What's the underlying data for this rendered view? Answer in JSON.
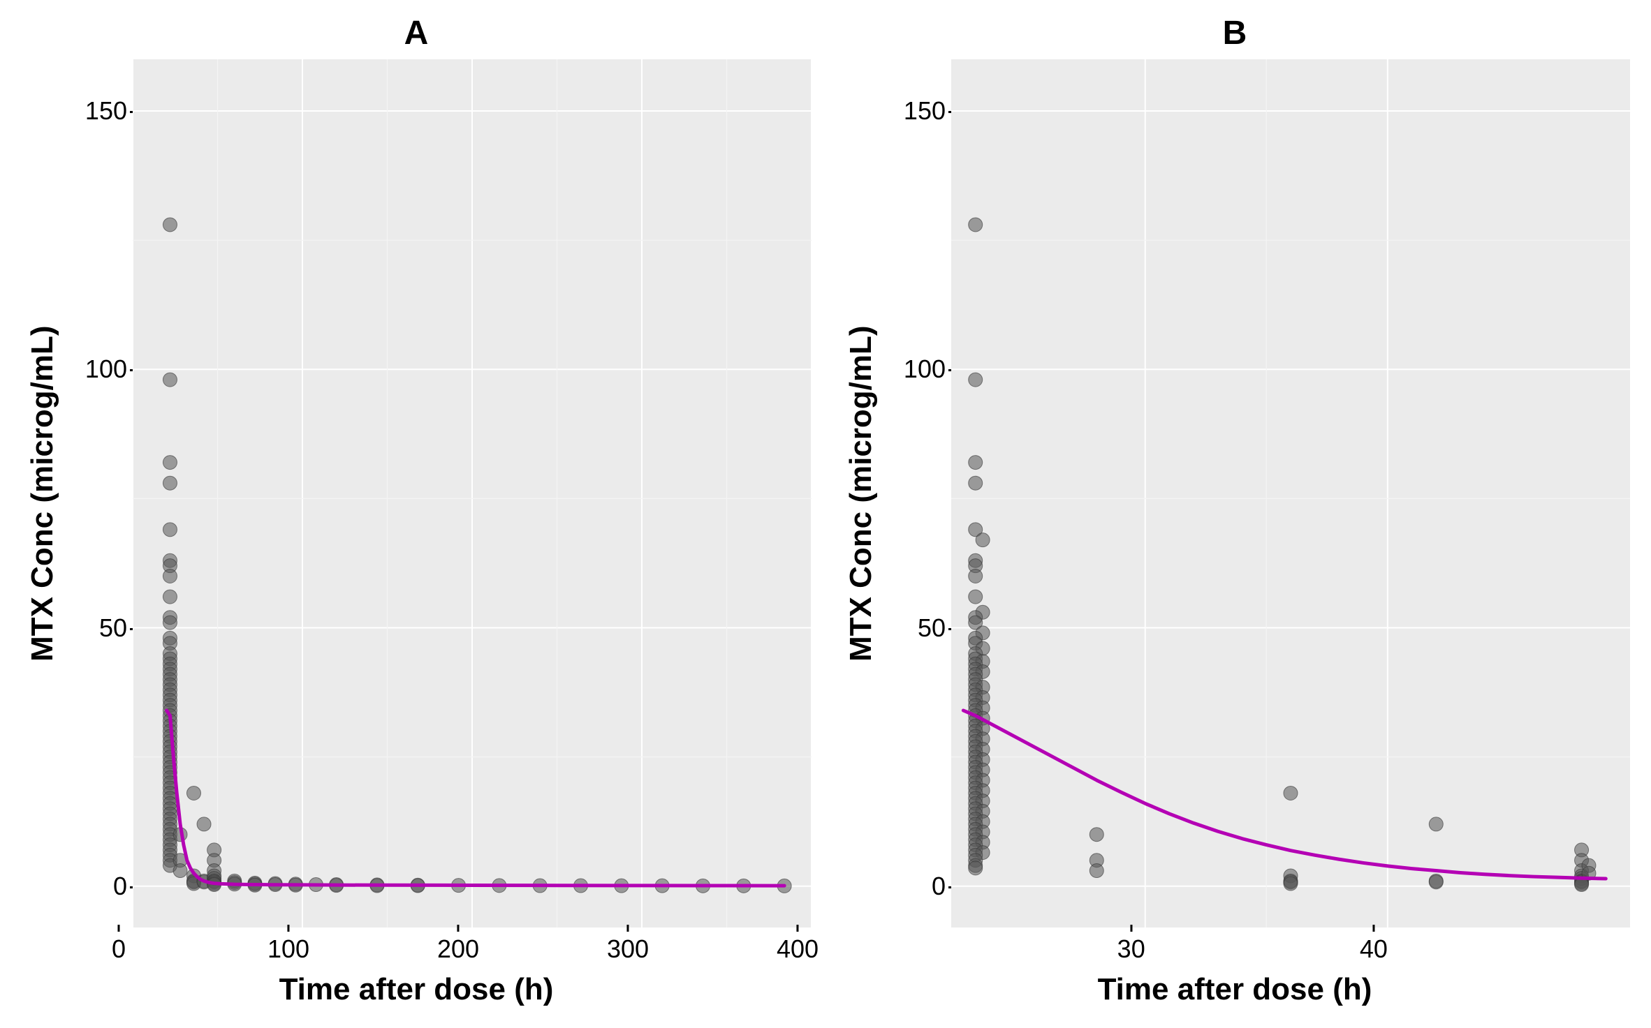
{
  "figure": {
    "background_color": "#ffffff",
    "panel_bg": "#ebebeb",
    "grid_color": "#ffffff",
    "grid_minor_color": "#f4f4f4",
    "point_fill": "#555555",
    "point_stroke": "#333333",
    "point_opacity": 0.55,
    "point_radius": 10,
    "line_color": "#b400b4",
    "line_width": 5,
    "title_fontsize": 48,
    "label_fontsize": 44,
    "tick_fontsize": 36,
    "font_weight_title": 700,
    "font_weight_label": 700
  },
  "panels": {
    "A": {
      "title": "A",
      "xlabel": "Time after dose (h)",
      "ylabel": "MTX Conc (microg/mL)",
      "xlim": [
        0,
        400
      ],
      "ylim": [
        -8,
        160
      ],
      "xticks": [
        0,
        100,
        200,
        300,
        400
      ],
      "yticks": [
        0,
        50,
        100,
        150
      ],
      "type": "scatter+line",
      "points": [
        [
          22,
          128
        ],
        [
          22,
          98
        ],
        [
          22,
          82
        ],
        [
          22,
          78
        ],
        [
          22,
          69
        ],
        [
          22,
          63
        ],
        [
          22,
          62
        ],
        [
          22,
          60
        ],
        [
          22,
          56
        ],
        [
          22,
          52
        ],
        [
          22,
          51
        ],
        [
          22,
          48
        ],
        [
          22,
          47
        ],
        [
          22,
          45
        ],
        [
          22,
          44
        ],
        [
          22,
          43
        ],
        [
          22,
          42
        ],
        [
          22,
          41
        ],
        [
          22,
          40
        ],
        [
          22,
          39
        ],
        [
          22,
          38
        ],
        [
          22,
          37
        ],
        [
          22,
          36
        ],
        [
          22,
          35
        ],
        [
          22,
          34
        ],
        [
          22,
          33
        ],
        [
          22,
          32
        ],
        [
          22,
          31
        ],
        [
          22,
          30
        ],
        [
          22,
          29
        ],
        [
          22,
          28
        ],
        [
          22,
          27
        ],
        [
          22,
          26
        ],
        [
          22,
          25
        ],
        [
          22,
          24
        ],
        [
          22,
          23
        ],
        [
          22,
          22
        ],
        [
          22,
          21
        ],
        [
          22,
          20
        ],
        [
          22,
          19
        ],
        [
          22,
          18
        ],
        [
          22,
          17
        ],
        [
          22,
          16
        ],
        [
          22,
          15
        ],
        [
          22,
          14
        ],
        [
          22,
          13
        ],
        [
          22,
          12
        ],
        [
          22,
          11
        ],
        [
          22,
          10
        ],
        [
          22,
          9
        ],
        [
          22,
          8
        ],
        [
          22,
          7
        ],
        [
          22,
          6
        ],
        [
          22,
          5
        ],
        [
          22,
          4
        ],
        [
          28,
          10
        ],
        [
          28,
          5
        ],
        [
          28,
          3
        ],
        [
          36,
          18
        ],
        [
          36,
          2
        ],
        [
          36,
          1
        ],
        [
          36,
          0.8
        ],
        [
          36,
          0.5
        ],
        [
          42,
          12
        ],
        [
          42,
          1
        ],
        [
          42,
          0.8
        ],
        [
          48,
          7
        ],
        [
          48,
          5
        ],
        [
          48,
          3
        ],
        [
          48,
          2
        ],
        [
          48,
          1.5
        ],
        [
          48,
          1
        ],
        [
          48,
          0.8
        ],
        [
          48,
          0.5
        ],
        [
          48,
          0.3
        ],
        [
          60,
          1
        ],
        [
          60,
          0.7
        ],
        [
          60,
          0.4
        ],
        [
          72,
          0.6
        ],
        [
          72,
          0.4
        ],
        [
          72,
          0.2
        ],
        [
          84,
          0.5
        ],
        [
          84,
          0.3
        ],
        [
          96,
          0.4
        ],
        [
          96,
          0.2
        ],
        [
          108,
          0.3
        ],
        [
          120,
          0.3
        ],
        [
          120,
          0.15
        ],
        [
          144,
          0.25
        ],
        [
          144,
          0.1
        ],
        [
          168,
          0.2
        ],
        [
          168,
          0.1
        ],
        [
          192,
          0.15
        ],
        [
          216,
          0.12
        ],
        [
          240,
          0.1
        ],
        [
          264,
          0.1
        ],
        [
          288,
          0.08
        ],
        [
          312,
          0.08
        ],
        [
          336,
          0.06
        ],
        [
          360,
          0.06
        ],
        [
          384,
          0.05
        ]
      ],
      "line": [
        [
          20,
          34
        ],
        [
          22,
          33
        ],
        [
          24,
          25
        ],
        [
          26,
          18
        ],
        [
          28,
          12
        ],
        [
          30,
          8
        ],
        [
          32,
          5
        ],
        [
          34,
          3.5
        ],
        [
          36,
          2.5
        ],
        [
          38,
          1.8
        ],
        [
          40,
          1.3
        ],
        [
          42,
          1.0
        ],
        [
          44,
          0.8
        ],
        [
          46,
          0.65
        ],
        [
          48,
          0.55
        ],
        [
          52,
          0.45
        ],
        [
          56,
          0.4
        ],
        [
          60,
          0.35
        ],
        [
          70,
          0.3
        ],
        [
          80,
          0.28
        ],
        [
          100,
          0.25
        ],
        [
          120,
          0.22
        ],
        [
          150,
          0.2
        ],
        [
          200,
          0.17
        ],
        [
          250,
          0.14
        ],
        [
          300,
          0.12
        ],
        [
          350,
          0.1
        ],
        [
          384,
          0.09
        ]
      ]
    },
    "B": {
      "title": "B",
      "xlabel": "Time after dose (h)",
      "ylabel": "MTX Conc (microg/mL)",
      "xlim": [
        22,
        50
      ],
      "ylim": [
        -8,
        160
      ],
      "xticks": [
        30,
        40
      ],
      "yticks": [
        0,
        50,
        100,
        150
      ],
      "type": "scatter+line",
      "points": [
        [
          23,
          128
        ],
        [
          23,
          98
        ],
        [
          23,
          82
        ],
        [
          23,
          78
        ],
        [
          23,
          69
        ],
        [
          23.3,
          67
        ],
        [
          23,
          63
        ],
        [
          23,
          62
        ],
        [
          23,
          60
        ],
        [
          23,
          56
        ],
        [
          23.3,
          53
        ],
        [
          23,
          52
        ],
        [
          23,
          51
        ],
        [
          23.3,
          49
        ],
        [
          23,
          48
        ],
        [
          23,
          47
        ],
        [
          23.3,
          46
        ],
        [
          23,
          45
        ],
        [
          23,
          44
        ],
        [
          23.3,
          43.5
        ],
        [
          23,
          43
        ],
        [
          23,
          42
        ],
        [
          23.3,
          41.5
        ],
        [
          23,
          41
        ],
        [
          23,
          40
        ],
        [
          23,
          39
        ],
        [
          23.3,
          38.5
        ],
        [
          23,
          38
        ],
        [
          23,
          37
        ],
        [
          23.3,
          36.5
        ],
        [
          23,
          36
        ],
        [
          23,
          35
        ],
        [
          23.3,
          34.5
        ],
        [
          23,
          34
        ],
        [
          23,
          33
        ],
        [
          23.3,
          32.5
        ],
        [
          23,
          32
        ],
        [
          23,
          31
        ],
        [
          23.3,
          30.5
        ],
        [
          23,
          30
        ],
        [
          23,
          29
        ],
        [
          23.3,
          28.5
        ],
        [
          23,
          28
        ],
        [
          23,
          27
        ],
        [
          23.3,
          26.5
        ],
        [
          23,
          26
        ],
        [
          23,
          25
        ],
        [
          23.3,
          24.5
        ],
        [
          23,
          24
        ],
        [
          23,
          23
        ],
        [
          23.3,
          22.5
        ],
        [
          23,
          22
        ],
        [
          23,
          21
        ],
        [
          23.3,
          20.5
        ],
        [
          23,
          20
        ],
        [
          23,
          19
        ],
        [
          23.3,
          18.5
        ],
        [
          23,
          18
        ],
        [
          23,
          17
        ],
        [
          23.3,
          16.5
        ],
        [
          23,
          16
        ],
        [
          23,
          15
        ],
        [
          23.3,
          14.5
        ],
        [
          23,
          14
        ],
        [
          23,
          13
        ],
        [
          23.3,
          12.5
        ],
        [
          23,
          12
        ],
        [
          23,
          11
        ],
        [
          23.3,
          10.5
        ],
        [
          23,
          10
        ],
        [
          23,
          9
        ],
        [
          23.3,
          8.5
        ],
        [
          23,
          8
        ],
        [
          23,
          7
        ],
        [
          23.3,
          6.5
        ],
        [
          23,
          6
        ],
        [
          23,
          5
        ],
        [
          23,
          4
        ],
        [
          23,
          3.5
        ],
        [
          28,
          10
        ],
        [
          28,
          5
        ],
        [
          28,
          3
        ],
        [
          36,
          18
        ],
        [
          36,
          2
        ],
        [
          36,
          1
        ],
        [
          36,
          0.8
        ],
        [
          36,
          0.5
        ],
        [
          42,
          12
        ],
        [
          42,
          1
        ],
        [
          42,
          0.8
        ],
        [
          48,
          7
        ],
        [
          48,
          5
        ],
        [
          48,
          3
        ],
        [
          48,
          2
        ],
        [
          48,
          1.5
        ],
        [
          48,
          1
        ],
        [
          48,
          0.8
        ],
        [
          48.3,
          4
        ],
        [
          48.3,
          2.5
        ],
        [
          48,
          0.5
        ],
        [
          48,
          0.3
        ]
      ],
      "line": [
        [
          22.5,
          34
        ],
        [
          23,
          33
        ],
        [
          24,
          30.5
        ],
        [
          25,
          28
        ],
        [
          26,
          25.5
        ],
        [
          27,
          23
        ],
        [
          28,
          20.5
        ],
        [
          29,
          18.2
        ],
        [
          30,
          16
        ],
        [
          31,
          14
        ],
        [
          32,
          12.2
        ],
        [
          33,
          10.6
        ],
        [
          34,
          9.2
        ],
        [
          35,
          8
        ],
        [
          36,
          6.9
        ],
        [
          37,
          6
        ],
        [
          38,
          5.2
        ],
        [
          39,
          4.5
        ],
        [
          40,
          3.9
        ],
        [
          41,
          3.4
        ],
        [
          42,
          3
        ],
        [
          43,
          2.6
        ],
        [
          44,
          2.3
        ],
        [
          45,
          2.05
        ],
        [
          46,
          1.85
        ],
        [
          47,
          1.7
        ],
        [
          48,
          1.55
        ],
        [
          49,
          1.45
        ]
      ]
    }
  }
}
